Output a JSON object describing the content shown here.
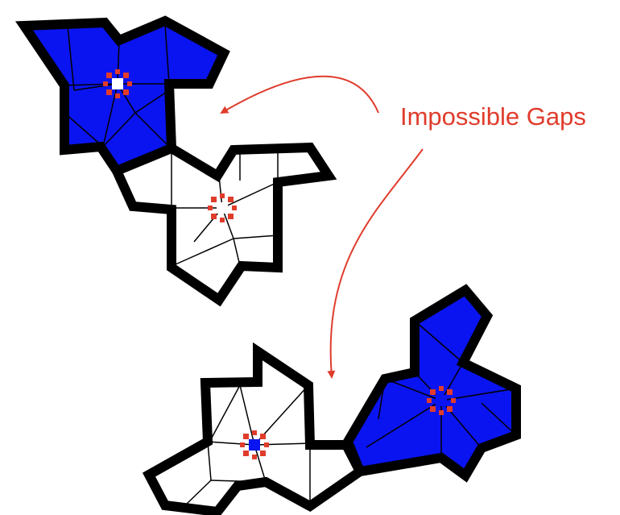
{
  "annotation": {
    "label": "Impossible Gaps",
    "color": "#e03c2c"
  },
  "colors": {
    "blue_fill": "#0a14f0",
    "white_fill": "#ffffff",
    "outline": "#000000",
    "marker": "#e03c2c"
  },
  "shapes": [
    {
      "id": "upper-blue-tile",
      "fill": "blue"
    },
    {
      "id": "upper-white-tile",
      "fill": "white"
    },
    {
      "id": "lower-white-tile",
      "fill": "white"
    },
    {
      "id": "lower-blue-tile",
      "fill": "blue"
    }
  ],
  "icons": {
    "center_marker": "cross-marker-icon",
    "arrow": "curved-arrow-icon"
  }
}
